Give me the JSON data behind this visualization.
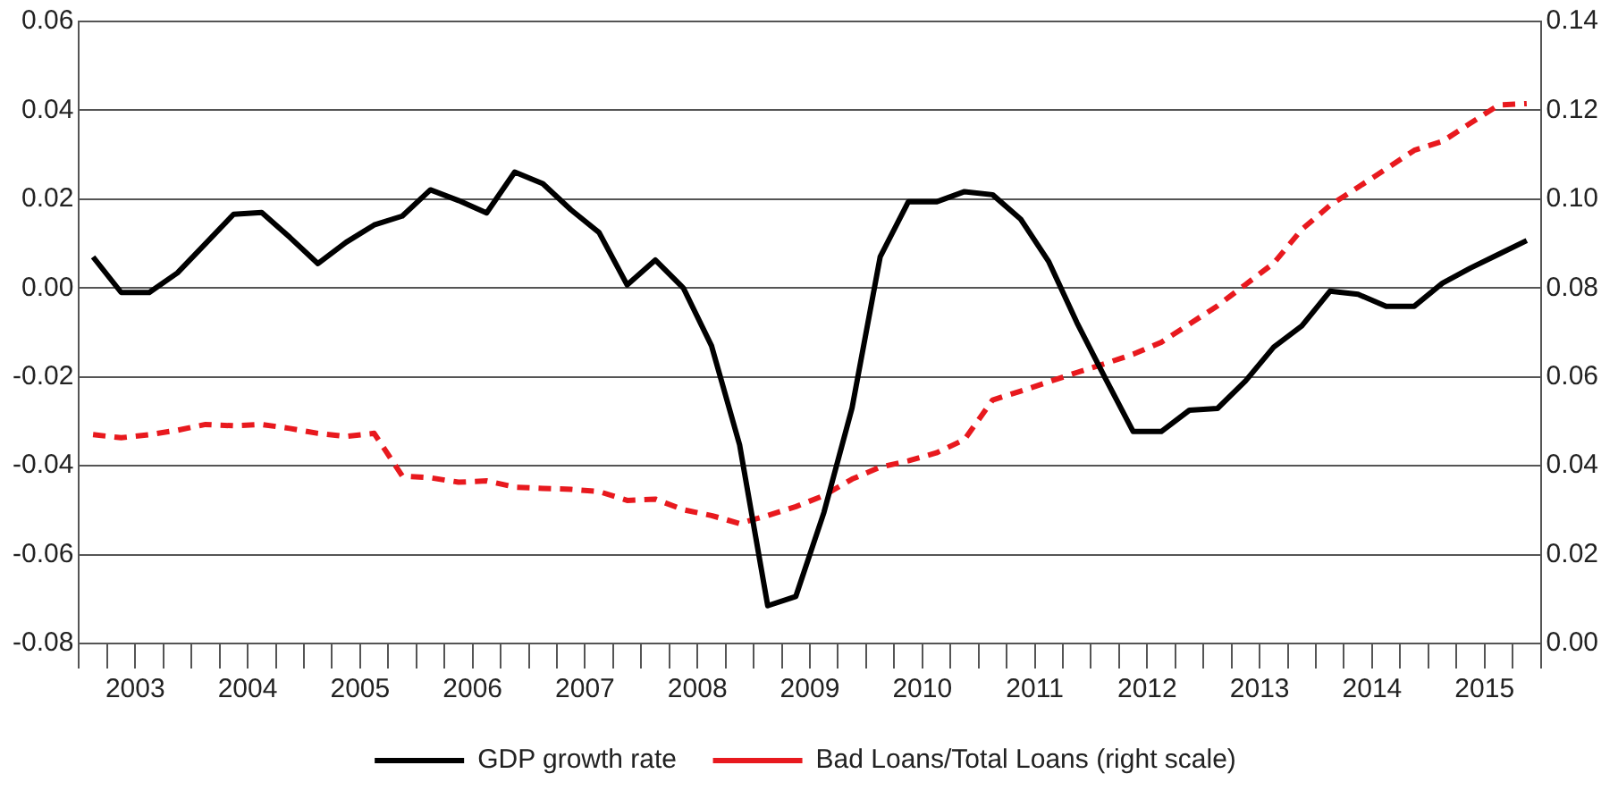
{
  "chart_data": {
    "type": "line",
    "x": [
      2003.125,
      2003.375,
      2003.625,
      2003.875,
      2004.125,
      2004.375,
      2004.625,
      2004.875,
      2005.125,
      2005.375,
      2005.625,
      2005.875,
      2006.125,
      2006.375,
      2006.625,
      2006.875,
      2007.125,
      2007.375,
      2007.625,
      2007.875,
      2008.125,
      2008.375,
      2008.625,
      2008.875,
      2009.125,
      2009.375,
      2009.625,
      2009.875,
      2010.125,
      2010.375,
      2010.625,
      2010.875,
      2011.125,
      2011.375,
      2011.625,
      2011.875,
      2012.125,
      2012.375,
      2012.625,
      2012.875,
      2013.125,
      2013.375,
      2013.625,
      2013.875,
      2014.125,
      2014.375,
      2014.625,
      2014.875,
      2015.125,
      2015.375,
      2015.625,
      2015.875
    ],
    "series": [
      {
        "name": "GDP growth rate",
        "color": "#000000",
        "line_style": "solid",
        "values": [
          0.007,
          -0.001,
          -0.001,
          0.0034,
          0.01,
          0.0166,
          0.017,
          0.0114,
          0.0055,
          0.0103,
          0.0142,
          0.0162,
          0.0221,
          0.0197,
          0.0169,
          0.0261,
          0.0235,
          0.0176,
          0.0125,
          0.0007,
          0.0063,
          0.0,
          -0.013,
          -0.0353,
          -0.0715,
          -0.0694,
          -0.0505,
          -0.027,
          0.007,
          0.0194,
          0.0194,
          0.0217,
          0.021,
          0.0155,
          0.0059,
          -0.0078,
          -0.0202,
          -0.0323,
          -0.0323,
          -0.0275,
          -0.0271,
          -0.0209,
          -0.0133,
          -0.0085,
          -0.0007,
          -0.0014,
          -0.0041,
          -0.0041,
          0.0011,
          0.0045,
          0.0076,
          0.0107
        ]
      },
      {
        "name": "Bad Loans/Total Loans (right scale)",
        "color": "#e8191e",
        "line_style": "dashed",
        "axis": "y2",
        "values": [
          0.047,
          0.0463,
          0.047,
          0.048,
          0.0493,
          0.049,
          0.0493,
          0.0484,
          0.0473,
          0.0466,
          0.0473,
          0.0377,
          0.0373,
          0.0363,
          0.0366,
          0.0352,
          0.0349,
          0.0347,
          0.0342,
          0.0322,
          0.0325,
          0.0301,
          0.0288,
          0.027,
          0.0288,
          0.0308,
          0.0333,
          0.037,
          0.0397,
          0.0411,
          0.0429,
          0.0459,
          0.0548,
          0.0568,
          0.0589,
          0.061,
          0.063,
          0.0651,
          0.0678,
          0.0719,
          0.076,
          0.0808,
          0.0856,
          0.0932,
          0.0986,
          0.1027,
          0.1068,
          0.111,
          0.113,
          0.1171,
          0.1212,
          0.1215
        ]
      }
    ],
    "xlim": [
      2003,
      2016
    ],
    "xticks": [
      {
        "value": 2003,
        "label": null
      },
      {
        "value": 2003.25,
        "label": null
      },
      {
        "value": 2003.5,
        "label": "2003"
      },
      {
        "value": 2003.75,
        "label": null
      },
      {
        "value": 2004,
        "label": null
      },
      {
        "value": 2004.25,
        "label": null
      },
      {
        "value": 2004.5,
        "label": "2004"
      },
      {
        "value": 2004.75,
        "label": null
      },
      {
        "value": 2005,
        "label": null
      },
      {
        "value": 2005.25,
        "label": null
      },
      {
        "value": 2005.5,
        "label": "2005"
      },
      {
        "value": 2005.75,
        "label": null
      },
      {
        "value": 2006,
        "label": null
      },
      {
        "value": 2006.25,
        "label": null
      },
      {
        "value": 2006.5,
        "label": "2006"
      },
      {
        "value": 2006.75,
        "label": null
      },
      {
        "value": 2007,
        "label": null
      },
      {
        "value": 2007.25,
        "label": null
      },
      {
        "value": 2007.5,
        "label": "2007"
      },
      {
        "value": 2007.75,
        "label": null
      },
      {
        "value": 2008,
        "label": null
      },
      {
        "value": 2008.25,
        "label": null
      },
      {
        "value": 2008.5,
        "label": "2008"
      },
      {
        "value": 2008.75,
        "label": null
      },
      {
        "value": 2009,
        "label": null
      },
      {
        "value": 2009.25,
        "label": null
      },
      {
        "value": 2009.5,
        "label": "2009"
      },
      {
        "value": 2009.75,
        "label": null
      },
      {
        "value": 2010,
        "label": null
      },
      {
        "value": 2010.25,
        "label": null
      },
      {
        "value": 2010.5,
        "label": "2010"
      },
      {
        "value": 2010.75,
        "label": null
      },
      {
        "value": 2011,
        "label": null
      },
      {
        "value": 2011.25,
        "label": null
      },
      {
        "value": 2011.5,
        "label": "2011"
      },
      {
        "value": 2011.75,
        "label": null
      },
      {
        "value": 2012,
        "label": null
      },
      {
        "value": 2012.25,
        "label": null
      },
      {
        "value": 2012.5,
        "label": "2012"
      },
      {
        "value": 2012.75,
        "label": null
      },
      {
        "value": 2013,
        "label": null
      },
      {
        "value": 2013.25,
        "label": null
      },
      {
        "value": 2013.5,
        "label": "2013"
      },
      {
        "value": 2013.75,
        "label": null
      },
      {
        "value": 2014,
        "label": null
      },
      {
        "value": 2014.25,
        "label": null
      },
      {
        "value": 2014.5,
        "label": "2014"
      },
      {
        "value": 2014.75,
        "label": null
      },
      {
        "value": 2015,
        "label": null
      },
      {
        "value": 2015.25,
        "label": null
      },
      {
        "value": 2015.5,
        "label": "2015"
      },
      {
        "value": 2015.75,
        "label": null
      },
      {
        "value": 2016,
        "label": null
      }
    ],
    "ylim": [
      -0.08,
      0.06
    ],
    "yticks": [
      {
        "value": -0.08,
        "label": "-0.08"
      },
      {
        "value": -0.06,
        "label": "-0.06"
      },
      {
        "value": -0.04,
        "label": "-0.04"
      },
      {
        "value": -0.02,
        "label": "-0.02"
      },
      {
        "value": 0,
        "label": "0.00"
      },
      {
        "value": 0.02,
        "label": "0.02"
      },
      {
        "value": 0.04,
        "label": "0.04"
      },
      {
        "value": 0.06,
        "label": "0.06"
      }
    ],
    "y2lim": [
      0,
      0.14
    ],
    "y2ticks": [
      {
        "value": 0,
        "label": "0.00"
      },
      {
        "value": 0.02,
        "label": "0.02"
      },
      {
        "value": 0.04,
        "label": "0.04"
      },
      {
        "value": 0.06,
        "label": "0.06"
      },
      {
        "value": 0.08,
        "label": "0.08"
      },
      {
        "value": 0.1,
        "label": "0.10"
      },
      {
        "value": 0.12,
        "label": "0.12"
      },
      {
        "value": 0.14,
        "label": "0.14"
      }
    ],
    "grid": "y",
    "legend": "bottom",
    "marker": "none"
  }
}
